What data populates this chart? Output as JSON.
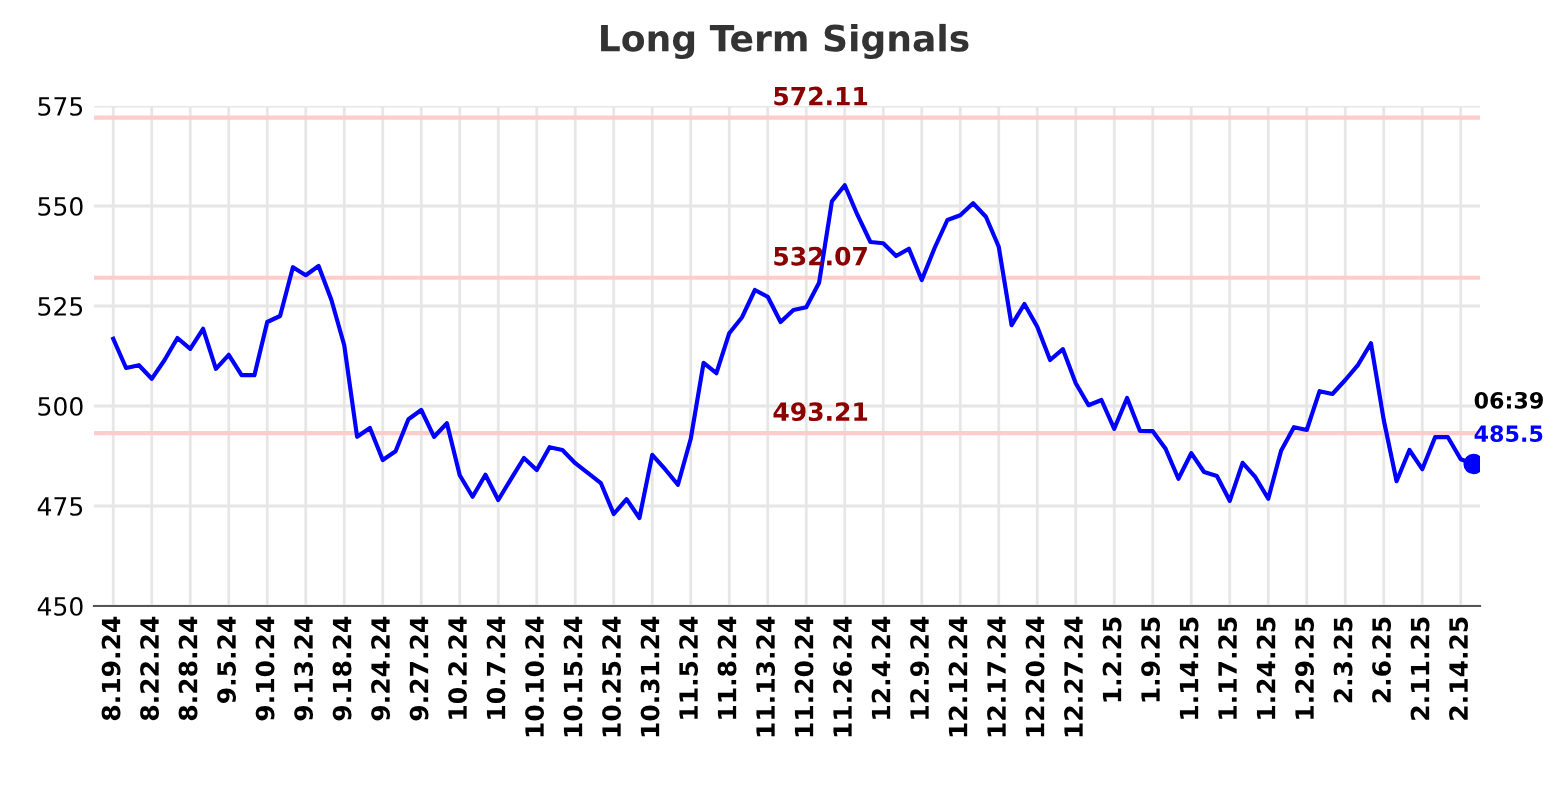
{
  "chart_data": {
    "type": "line",
    "title": "Long Term Signals",
    "categories": [
      "8.19.24",
      null,
      null,
      "8.22.24",
      null,
      null,
      "8.28.24",
      null,
      null,
      "9.5.24",
      null,
      null,
      "9.10.24",
      null,
      null,
      "9.13.24",
      null,
      null,
      "9.18.24",
      null,
      null,
      "9.24.24",
      null,
      null,
      "9.27.24",
      null,
      null,
      "10.2.24",
      null,
      null,
      "10.7.24",
      null,
      null,
      "10.10.24",
      null,
      null,
      "10.15.24",
      null,
      null,
      "10.25.24",
      null,
      null,
      "10.31.24",
      null,
      null,
      "11.5.24",
      null,
      null,
      "11.8.24",
      null,
      null,
      "11.13.24",
      null,
      null,
      "11.20.24",
      null,
      null,
      "11.26.24",
      null,
      null,
      "12.4.24",
      null,
      null,
      "12.9.24",
      null,
      null,
      "12.12.24",
      null,
      null,
      "12.17.24",
      null,
      null,
      "12.20.24",
      null,
      null,
      "12.27.24",
      null,
      null,
      "1.2.25",
      null,
      null,
      "1.9.25",
      null,
      null,
      "1.14.25",
      null,
      null,
      "1.17.25",
      null,
      null,
      "1.24.25",
      null,
      null,
      "1.29.25",
      null,
      null,
      "2.3.25",
      null,
      null,
      "2.6.25",
      null,
      null,
      "2.11.25",
      null,
      null,
      "2.14.25",
      null
    ],
    "series": [
      {
        "color": "#0000ff",
        "marker": "none",
        "values": [
          516.8,
          509.5,
          510.2,
          506.8,
          511.5,
          517,
          514.3,
          519.3,
          509.3,
          512.8,
          507.7,
          507.7,
          521,
          522.5,
          534.7,
          532.7,
          535,
          526.5,
          515.2,
          492.3,
          494.5,
          486.5,
          488.7,
          496.7,
          499,
          492.3,
          495.7,
          482.7,
          477.3,
          482.8,
          476.5,
          481.8,
          487,
          484,
          489.7,
          489,
          485.7,
          483.2,
          480.7,
          473,
          476.7,
          472,
          487.8,
          484.2,
          480.3,
          491.8,
          510.8,
          508.2,
          518.2,
          522.2,
          529,
          527.3,
          521,
          524,
          524.7,
          530.8,
          551.2,
          555.2,
          547.7,
          541,
          540.7,
          537.5,
          539.3,
          531.5,
          539.5,
          546.5,
          547.7,
          550.7,
          547.3,
          539.8,
          520.2,
          525.5,
          519.8,
          511.5,
          514.2,
          505.7,
          500.2,
          501.5,
          494.3,
          502,
          493.8,
          493.7,
          489.3,
          481.8,
          488.2,
          483.5,
          482.5,
          476.3,
          485.8,
          482.2,
          476.8,
          488.8,
          494.7,
          494,
          503.7,
          503,
          506.5,
          510.3,
          515.7,
          496.5,
          481.2,
          489,
          484.2,
          492.2,
          492.2,
          486.7,
          485.5
        ]
      },
      {
        "type": "scatter",
        "color": "#0000ff",
        "marker": "circle",
        "values": [
          null,
          null,
          null,
          null,
          null,
          null,
          null,
          null,
          null,
          null,
          null,
          null,
          null,
          null,
          null,
          null,
          null,
          null,
          null,
          null,
          null,
          null,
          null,
          null,
          null,
          null,
          null,
          null,
          null,
          null,
          null,
          null,
          null,
          null,
          null,
          null,
          null,
          null,
          null,
          null,
          null,
          null,
          null,
          null,
          null,
          null,
          null,
          null,
          null,
          null,
          null,
          null,
          null,
          null,
          null,
          null,
          null,
          null,
          null,
          null,
          null,
          null,
          null,
          null,
          null,
          null,
          null,
          null,
          null,
          null,
          null,
          null,
          null,
          null,
          null,
          null,
          null,
          null,
          null,
          null,
          null,
          null,
          null,
          null,
          null,
          null,
          null,
          null,
          null,
          null,
          null,
          null,
          null,
          null,
          null,
          null,
          null,
          null,
          null,
          null,
          null,
          null,
          null,
          null,
          null,
          null,
          485.5
        ]
      }
    ],
    "ylim": [
      450,
      575
    ],
    "yticks": [
      450,
      475,
      500,
      525,
      550,
      575
    ],
    "grid": true,
    "ref_lines": [
      {
        "axis": "y",
        "value": 572.11,
        "label": "572.11",
        "color": "#ffcccc"
      },
      {
        "axis": "y",
        "value": 532.07,
        "label": "532.07",
        "color": "#ffcccc"
      },
      {
        "axis": "y",
        "value": 493.21,
        "label": "493.21",
        "color": "#ffcccc"
      }
    ],
    "annotations": [
      "06:39",
      "485.5"
    ]
  }
}
